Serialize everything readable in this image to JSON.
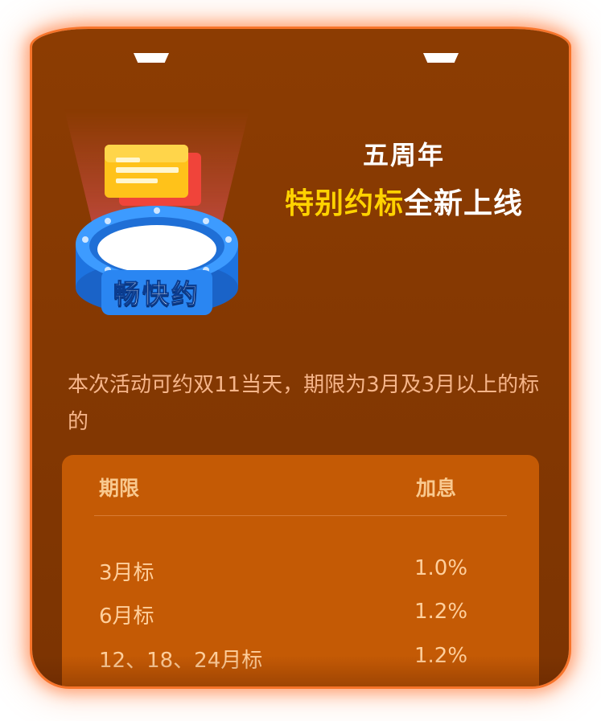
{
  "headline": {
    "line1": "五周年",
    "line2_highlight": "特别约标",
    "line2_rest": "全新上线"
  },
  "badge": {
    "label": "畅快约",
    "icon": "ring-with-cards-icon"
  },
  "description": "本次活动可约双11当天，期限为3月及3月以上的标的",
  "table": {
    "headers": [
      "期限",
      "加息"
    ],
    "rows": [
      {
        "term": "3月标",
        "bonus": "1.0%"
      },
      {
        "term": "6月标",
        "bonus": "1.2%"
      },
      {
        "term": "12、18、24月标",
        "bonus": "1.2%"
      }
    ]
  },
  "colors": {
    "card_bg": "#8c3c02",
    "glow": "#f7742a",
    "highlight": "#ffd200",
    "table_bg": "#c45a05",
    "text_light": "#f6b58a"
  }
}
